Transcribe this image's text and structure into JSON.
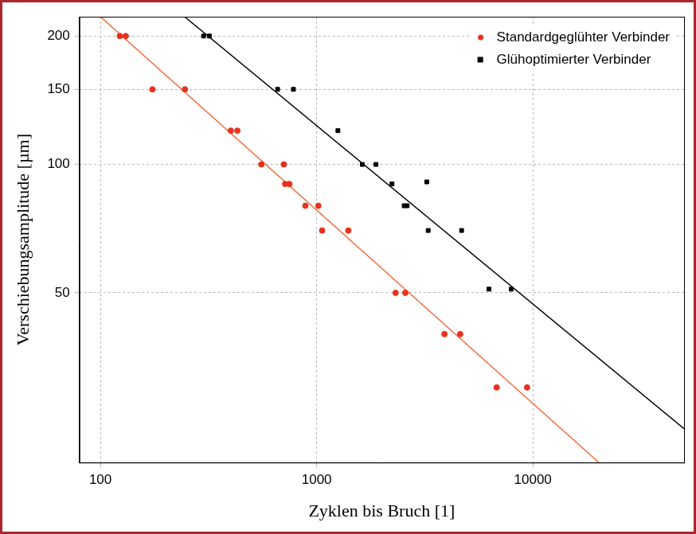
{
  "chart_data": {
    "type": "scatter",
    "x_label": "Zyklen bis Bruch [1]",
    "y_label": "Verschiebungsamplitude [µm]",
    "log": true,
    "grid": true,
    "legend": "upper-right",
    "xlim": [
      80,
      50000
    ],
    "xticks": [
      100,
      1000,
      10000
    ],
    "ylim": [
      20,
      222
    ],
    "yticks": [
      50,
      100,
      150,
      200
    ],
    "series": [
      {
        "name": "Standardgeglühter Verbinder",
        "color": "#e8321e",
        "marker": "circle",
        "x": [
          123,
          131,
          174,
          246,
          401,
          430,
          555,
          705,
          715,
          748,
          887,
          1018,
          1060,
          1401,
          2318,
          2569,
          3900,
          4610,
          6800,
          9400
        ],
        "values": [
          200,
          200,
          150,
          150,
          120,
          120,
          100,
          100,
          90,
          90,
          80,
          80,
          70,
          70,
          50,
          50,
          40,
          40,
          30,
          30
        ]
      },
      {
        "name": "Glühoptimierter Verbinder",
        "color": "#000000",
        "marker": "square",
        "x": [
          300,
          319,
          660,
          781,
          1254,
          1626,
          1880,
          2230,
          3230,
          2540,
          2620,
          3280,
          4680,
          6260,
          7940
        ],
        "values": [
          200,
          200,
          150,
          150,
          120,
          100,
          100,
          90,
          91,
          80,
          80,
          70,
          70,
          51,
          51
        ]
      }
    ],
    "fit_lines": [
      {
        "color": "#f26b3a",
        "line_style": "solid",
        "x": [
          100,
          20200
        ],
        "values": [
          222,
          20
        ]
      },
      {
        "color": "#000000",
        "line_style": "solid",
        "x": [
          245,
          50000
        ],
        "values": [
          222,
          24
        ]
      }
    ]
  }
}
